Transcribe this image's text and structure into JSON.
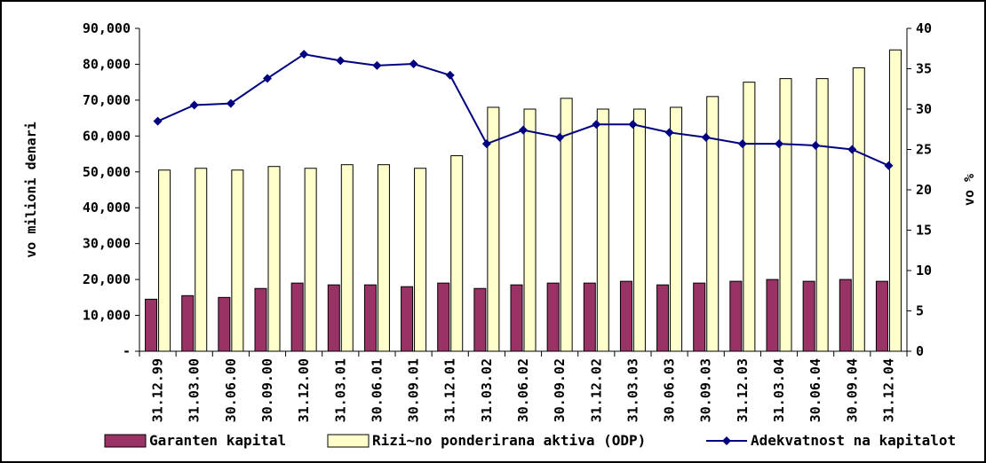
{
  "chart_data": {
    "type": "bar",
    "categories": [
      "31.12.99",
      "31.03.00",
      "30.06.00",
      "30.09.00",
      "31.12.00",
      "31.03.01",
      "30.06.01",
      "30.09.01",
      "31.12.01",
      "31.03.02",
      "30.06.02",
      "30.09.02",
      "31.12.02",
      "31.03.03",
      "30.06.03",
      "30.09.03",
      "31.12.03",
      "31.03.04",
      "30.06.04",
      "30.09.04",
      "31.12.04"
    ],
    "series": [
      {
        "name": "Garanten kapital",
        "type": "bar",
        "axis": "left",
        "color": "#993366",
        "values": [
          14500,
          15500,
          15000,
          17500,
          19000,
          18500,
          18500,
          18000,
          19000,
          17500,
          18500,
          19000,
          19000,
          19500,
          18500,
          19000,
          19500,
          20000,
          19500,
          20000,
          19500
        ]
      },
      {
        "name": "Rizi~no ponderirana aktiva (ODP)",
        "type": "bar",
        "axis": "left",
        "color": "#FFFFCC",
        "values": [
          50500,
          51000,
          50500,
          51500,
          51000,
          52000,
          52000,
          51000,
          54500,
          68000,
          67500,
          70500,
          67500,
          67500,
          68000,
          71000,
          75000,
          76000,
          76000,
          79000,
          84000
        ]
      },
      {
        "name": "Adekvatnost na kapitalot",
        "type": "line",
        "axis": "right",
        "color": "#000080",
        "values": [
          28.5,
          30.5,
          30.7,
          33.8,
          36.8,
          36.0,
          35.4,
          35.6,
          34.2,
          25.7,
          27.4,
          26.5,
          28.1,
          28.1,
          27.1,
          26.5,
          25.7,
          25.7,
          25.5,
          25.0,
          23.0
        ]
      }
    ],
    "ylabel": "vo milioni denari",
    "y2label": "vo %",
    "ylim": [
      0,
      90000
    ],
    "y2lim": [
      0,
      40
    ],
    "y_ticks": [
      "-",
      "10,000",
      "20,000",
      "30,000",
      "40,000",
      "50,000",
      "60,000",
      "70,000",
      "80,000",
      "90,000"
    ],
    "y2_ticks": [
      "0",
      "5",
      "10",
      "15",
      "20",
      "25",
      "30",
      "35",
      "40"
    ],
    "legend_position": "bottom",
    "grid": false
  }
}
